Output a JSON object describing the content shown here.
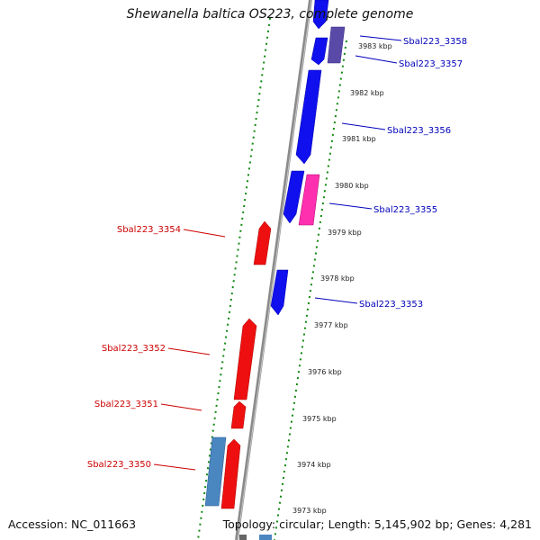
{
  "title": "Shewanella baltica OS223, complete genome",
  "accession_text": "Accession: NC_011663",
  "summary_text": "Topology: circular; Length: 5,145,902 bp; Genes: 4,281",
  "colors": {
    "forward": "#1010ee",
    "reverse": "#ee1010",
    "rna": "#ff30b0",
    "pseudo": "#4a86c0",
    "dark": "#5a4aa8",
    "axis": "#888888",
    "dots": "#118811",
    "fwd_label": "#0000bb",
    "rev_label": "#cc0000"
  },
  "axis": {
    "ticks": [
      "3973 kbp",
      "3974 kbp",
      "3975 kbp",
      "3976 kbp",
      "3977 kbp",
      "3978 kbp",
      "3979 kbp",
      "3980 kbp",
      "3981 kbp",
      "3982 kbp",
      "3983 kbp"
    ]
  },
  "forward_genes": [
    {
      "label": "Sbal223_3358"
    },
    {
      "label": "Sbal223_3357"
    },
    {
      "label": "Sbal223_3356"
    },
    {
      "label": "Sbal223_3355"
    },
    {
      "label": "Sbal223_3353"
    }
  ],
  "reverse_genes": [
    {
      "label": "Sbal223_3354"
    },
    {
      "label": "Sbal223_3352"
    },
    {
      "label": "Sbal223_3351"
    },
    {
      "label": "Sbal223_3350"
    }
  ]
}
